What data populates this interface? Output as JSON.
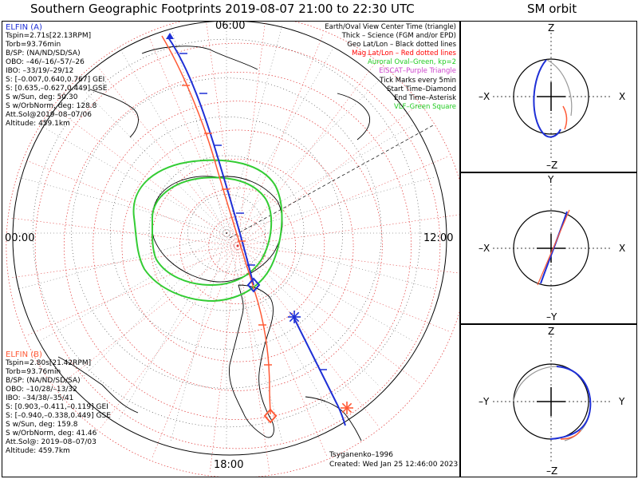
{
  "title": "Southern Geographic Footprints 2019-08-07 21:00 to 22:30 UTC",
  "sm_title": "SM orbit",
  "elfin_a": {
    "name": "ELFIN (A)",
    "color": "#1e2fd6",
    "lines": [
      "Tspin=2.71s[22.13RPM]",
      "Torb=93.76min",
      "B/SP: (NA/ND/SD/SA)",
      "OBO: –46/–16/–57/–26",
      "IBO: –33/19/–29/12",
      "S: [–0.007,0.640,0.767] GEI",
      "S: [0.635,–0.627,0.449] GSE",
      "S w/Sun, deg: 50.30",
      "S w/OrbNorm, deg: 128.8",
      "Att.Sol@2019–08–07/06",
      "Altitude: 459.1km"
    ]
  },
  "elfin_b": {
    "name": "ELFIN (B)",
    "color": "#ff5a36",
    "lines": [
      "Tspin=2.80s[21.42RPM]",
      "Torb=93.76min",
      "B/SP: (NA/ND/SD/SA)",
      "OBO: –10/28/–13/32",
      "IBO: –34/38/–35/41",
      "S: [0.903,–0.411,–0.119] GEI",
      "S: [–0.940,–0.338,0.449] GSE",
      "S w/Sun, deg: 159.8",
      "S w/OrbNorm, deg: 41.46",
      "Att.Sol@: 2019–08–07/03",
      "Altitude: 459.7km"
    ]
  },
  "legend": [
    {
      "text": "Earth/Oval View Center Time (triangle)",
      "color": "#000000"
    },
    {
      "text": "Thick – Science (FGM and/or EPD)",
      "color": "#000000"
    },
    {
      "text": "Geo Lat/Lon – Black dotted lines",
      "color": "#000000"
    },
    {
      "text": "Mag Lat/Lon – Red dotted lines",
      "color": "#ff0000"
    },
    {
      "text": "Auroral Oval–Green, kp=2",
      "color": "#22cc22"
    },
    {
      "text": "EISCAT–Purple Triangle",
      "color": "#cc44cc"
    },
    {
      "text": "Tick Marks every 5min",
      "color": "#000000"
    },
    {
      "text": "Start Time–Diamond",
      "color": "#000000"
    },
    {
      "text": "End Time–Asterisk",
      "color": "#000000"
    },
    {
      "text": "VLF–Green Square",
      "color": "#22cc22"
    }
  ],
  "map_labels": {
    "top": "06:00",
    "left": "00:00",
    "right": "12:00",
    "bottom": "18:00"
  },
  "credit": "Tsyganenko–1996",
  "created": "Created: Wed Jan 25 12:46:00 2023",
  "sm_panels": [
    {
      "top": "Z",
      "bottom": "–Z",
      "left": "–X",
      "right": "X"
    },
    {
      "top": "Y",
      "bottom": "–Y",
      "left": "–X",
      "right": "X"
    },
    {
      "top": "Z",
      "bottom": "–Z",
      "left": "–Y",
      "right": "Y"
    }
  ],
  "chart_data": {
    "type": "polar-map",
    "projection": "southern hemisphere polar",
    "local_time_labels": [
      "00:00",
      "06:00",
      "12:00",
      "18:00"
    ],
    "oval_color": "#33cc33",
    "series": [
      {
        "name": "ELFIN (A)",
        "color": "#1e2fd6",
        "start_marker": "diamond",
        "end_marker": "asterisk"
      },
      {
        "name": "ELFIN (B)",
        "color": "#ff5a36",
        "start_marker": "diamond",
        "end_marker": "asterisk"
      }
    ]
  }
}
